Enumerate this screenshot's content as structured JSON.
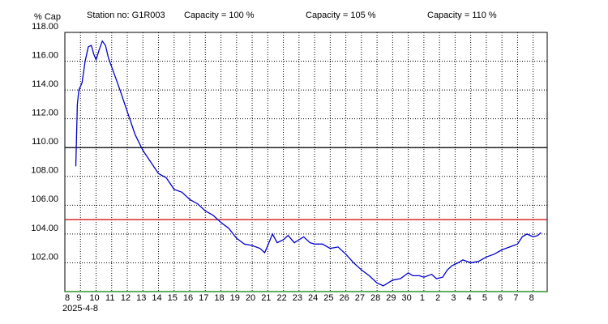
{
  "chart_data": {
    "type": "line",
    "y_label": "% Cap",
    "station": "Station no: G1R003",
    "x_label": "2025-4-8",
    "grid": true,
    "xlim": [
      0,
      30.9
    ],
    "ylim": [
      100,
      118
    ],
    "yticks": [
      {
        "value": 102,
        "label": "102.00"
      },
      {
        "value": 104,
        "label": "104.00"
      },
      {
        "value": 106,
        "label": "106.00"
      },
      {
        "value": 108,
        "label": "108.00"
      },
      {
        "value": 110,
        "label": "110.00"
      },
      {
        "value": 112,
        "label": "112.00"
      },
      {
        "value": 114,
        "label": "114.00"
      },
      {
        "value": 116,
        "label": "116.00"
      },
      {
        "value": 118,
        "label": "118.00"
      }
    ],
    "xticks": [
      {
        "value": 0,
        "label": "8"
      },
      {
        "value": 1,
        "label": "9"
      },
      {
        "value": 2,
        "label": "10"
      },
      {
        "value": 3,
        "label": "11"
      },
      {
        "value": 4,
        "label": "12"
      },
      {
        "value": 5,
        "label": "13"
      },
      {
        "value": 6,
        "label": "14"
      },
      {
        "value": 7,
        "label": "15"
      },
      {
        "value": 8,
        "label": "16"
      },
      {
        "value": 9,
        "label": "17"
      },
      {
        "value": 10,
        "label": "18"
      },
      {
        "value": 11,
        "label": "19"
      },
      {
        "value": 12,
        "label": "20"
      },
      {
        "value": 13,
        "label": "21"
      },
      {
        "value": 14,
        "label": "22"
      },
      {
        "value": 15,
        "label": "23"
      },
      {
        "value": 16,
        "label": "24"
      },
      {
        "value": 17,
        "label": "25"
      },
      {
        "value": 18,
        "label": "26"
      },
      {
        "value": 19,
        "label": "27"
      },
      {
        "value": 20,
        "label": "28"
      },
      {
        "value": 21,
        "label": "29"
      },
      {
        "value": 22,
        "label": "30"
      },
      {
        "value": 23,
        "label": "1"
      },
      {
        "value": 24,
        "label": "2"
      },
      {
        "value": 25,
        "label": "3"
      },
      {
        "value": 26,
        "label": "4"
      },
      {
        "value": 27,
        "label": "5"
      },
      {
        "value": 28,
        "label": "6"
      },
      {
        "value": 29,
        "label": "7"
      },
      {
        "value": 30,
        "label": "8"
      }
    ],
    "reference_lines": [
      {
        "value": 100,
        "label": "Capacity = 100 %",
        "color": "#008000"
      },
      {
        "value": 105,
        "label": "Capacity = 105 %",
        "color": "#cc0000"
      },
      {
        "value": 110,
        "label": "Capacity = 110 %",
        "color": "#000000"
      }
    ],
    "series": [
      {
        "color": "#0000cc",
        "x": [
          0.7,
          0.8,
          0.9,
          1.1,
          1.3,
          1.5,
          1.7,
          1.85,
          2.0,
          2.2,
          2.4,
          2.6,
          2.8,
          3.0,
          3.5,
          4.0,
          4.5,
          5.0,
          5.5,
          6.0,
          6.5,
          7.0,
          7.5,
          8.0,
          8.5,
          9.0,
          9.5,
          10.0,
          10.5,
          11.0,
          11.5,
          12.0,
          12.5,
          12.8,
          13.0,
          13.3,
          13.6,
          14.0,
          14.3,
          14.7,
          15.0,
          15.3,
          15.7,
          16.0,
          16.5,
          17.0,
          17.5,
          18.0,
          18.5,
          19.0,
          19.5,
          20.0,
          20.4,
          20.7,
          21.0,
          21.5,
          22.0,
          22.3,
          22.7,
          23.0,
          23.5,
          23.8,
          24.2,
          24.5,
          24.8,
          25.2,
          25.5,
          26.0,
          26.5,
          27.0,
          27.5,
          28.0,
          28.5,
          29.0,
          29.3,
          29.6,
          30.0,
          30.3,
          30.5
        ],
        "values": [
          108.7,
          113,
          114,
          114.5,
          116,
          117,
          117.1,
          116.5,
          116.1,
          116.8,
          117.4,
          117.1,
          116.2,
          115.6,
          114.1,
          112.5,
          110.9,
          109.8,
          109,
          108.2,
          107.9,
          107.1,
          106.9,
          106.4,
          106.1,
          105.6,
          105.3,
          104.8,
          104.4,
          103.7,
          103.3,
          103.2,
          103.0,
          102.7,
          103.2,
          104.0,
          103.4,
          103.6,
          103.9,
          103.4,
          103.6,
          103.8,
          103.4,
          103.3,
          103.3,
          103.0,
          103.1,
          102.6,
          102.0,
          101.5,
          101.1,
          100.6,
          100.4,
          100.6,
          100.8,
          100.9,
          101.3,
          101.1,
          101.1,
          101.0,
          101.2,
          100.9,
          101.0,
          101.5,
          101.8,
          102.0,
          102.2,
          102.0,
          102.1,
          102.4,
          102.6,
          102.9,
          103.1,
          103.3,
          103.8,
          104.0,
          103.8,
          103.9,
          104.1
        ]
      }
    ]
  }
}
